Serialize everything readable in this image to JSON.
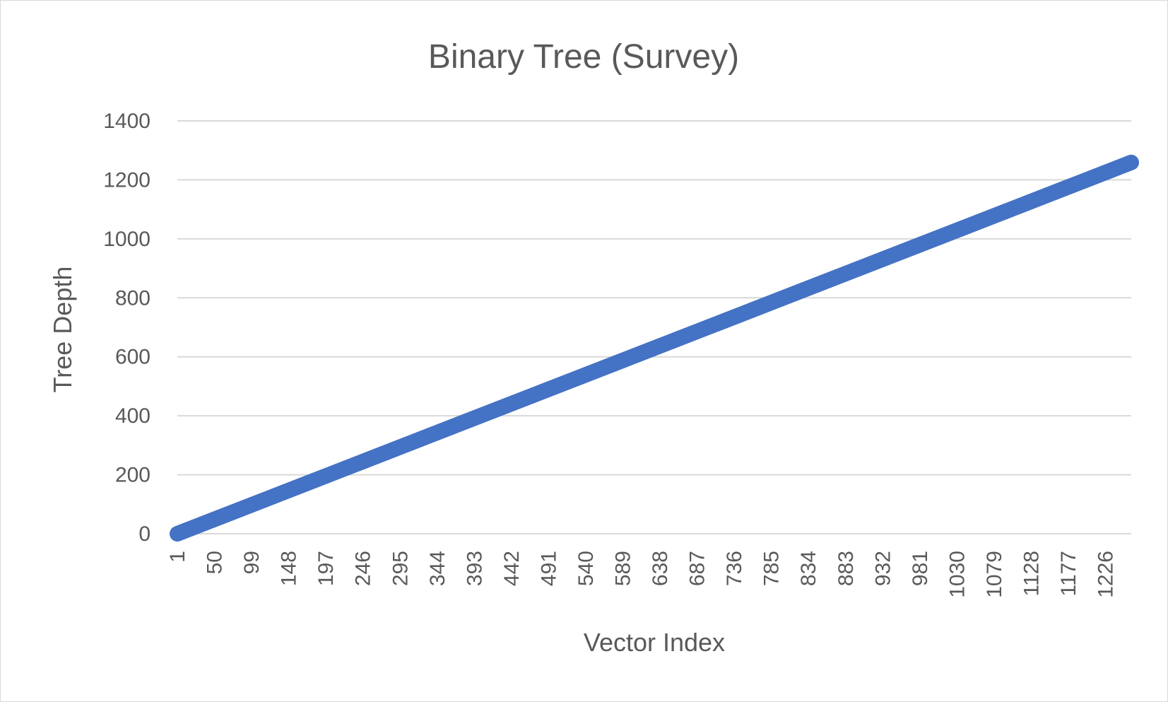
{
  "chart_data": {
    "type": "line",
    "title": "Binary Tree (Survey)",
    "xlabel": "Vector Index",
    "ylabel": "Tree Depth",
    "x_tick_labels": [
      "1",
      "50",
      "99",
      "148",
      "197",
      "246",
      "295",
      "344",
      "393",
      "442",
      "491",
      "540",
      "589",
      "638",
      "687",
      "736",
      "785",
      "834",
      "883",
      "932",
      "981",
      "1030",
      "1079",
      "1128",
      "1177",
      "1226"
    ],
    "y_tick_labels": [
      "0",
      "200",
      "400",
      "600",
      "800",
      "1000",
      "1200",
      "1400"
    ],
    "xlim": [
      1,
      1260
    ],
    "ylim": [
      0,
      1400
    ],
    "grid": true,
    "legend": "none",
    "series": [
      {
        "color": "#4472C4",
        "x": [
          1,
          1260
        ],
        "y": [
          0,
          1259
        ]
      }
    ]
  }
}
